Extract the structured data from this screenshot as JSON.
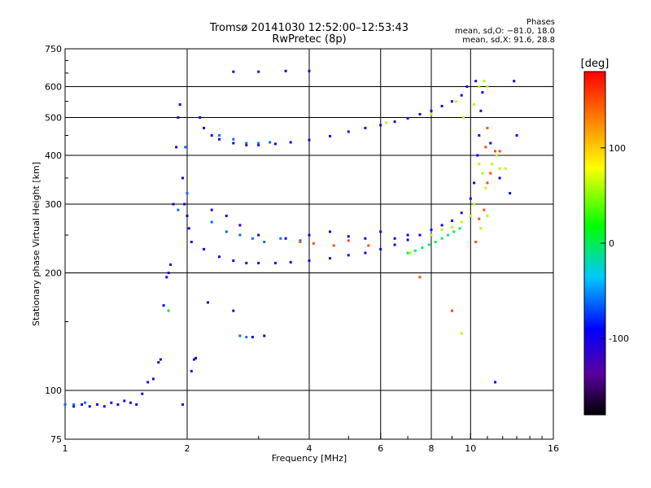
{
  "header": {
    "title_line1": "Tromsø 20141030 12:52:00–12:53:43",
    "title_line2": "RwPretec (8p)",
    "stats_title": "Phases",
    "stats_o": "mean, sd,O: −81.0, 18.0",
    "stats_x": "mean, sd,X:  91.6, 28.8"
  },
  "chart_data": {
    "type": "scatter",
    "title": "Tromsø 20141030 12:52:00–12:53:43",
    "subtitle": "RwPretec (8p)",
    "xlabel": "Frequency [MHz]",
    "ylabel": "Stationary phase Virtual Height [km]",
    "x_scale": "log",
    "y_scale": "log",
    "xlim": [
      1,
      16
    ],
    "ylim": [
      75,
      750
    ],
    "x_ticks": [
      1,
      2,
      4,
      6,
      8,
      10,
      16
    ],
    "x_tick_labels": [
      "1",
      "2",
      "4",
      "6",
      "8",
      "10",
      "16"
    ],
    "y_ticks": [
      75,
      100,
      200,
      300,
      400,
      500,
      600,
      750
    ],
    "y_tick_labels": [
      "75",
      "100",
      "200",
      "300",
      "400",
      "500",
      "600",
      "750"
    ],
    "grid": true,
    "colorbar": {
      "label": "[deg]",
      "range": [
        -180,
        180
      ],
      "ticks": [
        100,
        0,
        -100
      ],
      "tick_labels": [
        "100",
        "0",
        "-100"
      ],
      "colormap": [
        "#000000",
        "#5a00a0",
        "#0000ff",
        "#00c8ff",
        "#00ff00",
        "#ffff00",
        "#ff8000",
        "#ff0000"
      ]
    },
    "series": [
      {
        "color_value": -100,
        "points": [
          [
            1.0,
            92
          ],
          [
            1.05,
            91
          ],
          [
            1.1,
            92
          ],
          [
            1.15,
            91
          ],
          [
            1.2,
            92
          ],
          [
            1.25,
            91
          ],
          [
            1.3,
            93
          ],
          [
            1.35,
            92
          ],
          [
            1.4,
            94
          ],
          [
            1.45,
            93
          ],
          [
            1.5,
            92
          ],
          [
            1.55,
            98
          ],
          [
            1.6,
            105
          ],
          [
            1.65,
            107
          ],
          [
            1.7,
            118
          ],
          [
            1.72,
            120
          ],
          [
            1.75,
            165
          ],
          [
            1.78,
            195
          ],
          [
            1.8,
            200
          ],
          [
            1.82,
            210
          ],
          [
            1.85,
            300
          ],
          [
            1.88,
            420
          ],
          [
            1.9,
            500
          ],
          [
            1.92,
            540
          ],
          [
            1.95,
            350
          ],
          [
            1.97,
            300
          ],
          [
            2.0,
            280
          ],
          [
            2.02,
            260
          ],
          [
            2.05,
            240
          ],
          [
            2.08,
            120
          ],
          [
            2.05,
            112
          ],
          [
            2.1,
            121
          ],
          [
            2.15,
            500
          ],
          [
            2.2,
            470
          ],
          [
            2.3,
            450
          ],
          [
            2.4,
            440
          ],
          [
            2.6,
            430
          ],
          [
            2.8,
            425
          ],
          [
            3.0,
            425
          ],
          [
            3.3,
            428
          ],
          [
            3.6,
            432
          ],
          [
            4.0,
            438
          ],
          [
            4.5,
            448
          ],
          [
            5.0,
            460
          ],
          [
            5.5,
            470
          ],
          [
            6.0,
            478
          ],
          [
            6.5,
            488
          ],
          [
            7.0,
            498
          ],
          [
            7.5,
            510
          ],
          [
            8.0,
            520
          ],
          [
            8.5,
            535
          ],
          [
            9.0,
            550
          ],
          [
            9.5,
            570
          ],
          [
            9.8,
            600
          ],
          [
            2.2,
            230
          ],
          [
            2.4,
            220
          ],
          [
            2.6,
            215
          ],
          [
            2.8,
            212
          ],
          [
            3.0,
            212
          ],
          [
            3.3,
            212
          ],
          [
            3.6,
            213
          ],
          [
            4.0,
            215
          ],
          [
            4.5,
            218
          ],
          [
            5.0,
            222
          ],
          [
            5.5,
            225
          ],
          [
            6.0,
            230
          ],
          [
            6.5,
            236
          ],
          [
            7.0,
            243
          ],
          [
            7.5,
            250
          ],
          [
            8.0,
            258
          ],
          [
            8.5,
            265
          ],
          [
            9.0,
            272
          ],
          [
            9.5,
            285
          ],
          [
            10.0,
            310
          ],
          [
            10.2,
            340
          ],
          [
            10.4,
            400
          ],
          [
            10.5,
            450
          ],
          [
            10.6,
            520
          ],
          [
            10.7,
            580
          ],
          [
            10.3,
            620
          ],
          [
            2.6,
            655
          ],
          [
            3.0,
            655
          ],
          [
            3.5,
            658
          ],
          [
            4.0,
            658
          ],
          [
            2.9,
            137
          ],
          [
            3.1,
            138
          ],
          [
            2.25,
            168
          ],
          [
            2.6,
            160
          ],
          [
            2.3,
            290
          ],
          [
            2.5,
            280
          ],
          [
            2.7,
            265
          ],
          [
            3.0,
            250
          ],
          [
            3.5,
            245
          ],
          [
            4.0,
            250
          ],
          [
            4.5,
            255
          ],
          [
            5.0,
            248
          ],
          [
            5.5,
            245
          ],
          [
            6.0,
            255
          ],
          [
            6.5,
            245
          ],
          [
            7.0,
            250
          ],
          [
            1.95,
            92
          ],
          [
            11.5,
            105
          ],
          [
            13.0,
            450
          ],
          [
            12.8,
            620
          ],
          [
            11.2,
            430
          ],
          [
            11.8,
            350
          ],
          [
            12.5,
            320
          ]
        ]
      },
      {
        "color_value": -60,
        "points": [
          [
            1.0,
            92
          ],
          [
            1.05,
            92
          ],
          [
            1.12,
            93
          ],
          [
            2.4,
            450
          ],
          [
            2.6,
            440
          ],
          [
            2.8,
            430
          ],
          [
            3.0,
            430
          ],
          [
            3.2,
            432
          ],
          [
            2.3,
            270
          ],
          [
            2.5,
            255
          ],
          [
            2.7,
            250
          ],
          [
            2.9,
            245
          ],
          [
            3.1,
            240
          ],
          [
            2.8,
            137
          ],
          [
            2.7,
            138
          ],
          [
            3.4,
            245
          ],
          [
            3.8,
            242
          ],
          [
            1.9,
            290
          ],
          [
            2.0,
            320
          ],
          [
            1.98,
            420
          ]
        ]
      },
      {
        "color_value": 0,
        "points": [
          [
            7.0,
            225
          ],
          [
            7.3,
            228
          ],
          [
            7.6,
            232
          ],
          [
            7.9,
            236
          ],
          [
            8.2,
            240
          ],
          [
            8.5,
            245
          ],
          [
            8.8,
            250
          ],
          [
            9.1,
            255
          ],
          [
            9.4,
            260
          ],
          [
            1.8,
            160
          ]
        ]
      },
      {
        "color_value": 60,
        "points": [
          [
            8.0,
            250
          ],
          [
            8.5,
            258
          ],
          [
            9.0,
            262
          ],
          [
            9.5,
            270
          ],
          [
            10.0,
            280
          ],
          [
            10.2,
            300
          ],
          [
            10.5,
            380
          ],
          [
            10.7,
            360
          ],
          [
            10.9,
            330
          ],
          [
            11.3,
            380
          ],
          [
            11.6,
            400
          ],
          [
            11.8,
            370
          ],
          [
            12.2,
            370
          ],
          [
            9.6,
            500
          ],
          [
            10.2,
            540
          ],
          [
            10.5,
            600
          ],
          [
            8.0,
            510
          ],
          [
            6.2,
            485
          ],
          [
            7.1,
            225
          ],
          [
            9.5,
            140
          ],
          [
            10.8,
            620
          ],
          [
            11.0,
            600
          ],
          [
            10.6,
            260
          ],
          [
            11.0,
            280
          ],
          [
            9.2,
            550
          ]
        ]
      },
      {
        "color_value": 150,
        "points": [
          [
            3.8,
            240
          ],
          [
            4.1,
            238
          ],
          [
            4.6,
            235
          ],
          [
            5.0,
            242
          ],
          [
            5.6,
            235
          ],
          [
            10.3,
            240
          ],
          [
            10.5,
            275
          ],
          [
            10.8,
            290
          ],
          [
            11.0,
            340
          ],
          [
            11.2,
            360
          ],
          [
            11.5,
            410
          ],
          [
            7.5,
            195
          ],
          [
            9.0,
            160
          ],
          [
            11.0,
            470
          ],
          [
            11.8,
            410
          ],
          [
            10.9,
            420
          ]
        ]
      }
    ]
  }
}
